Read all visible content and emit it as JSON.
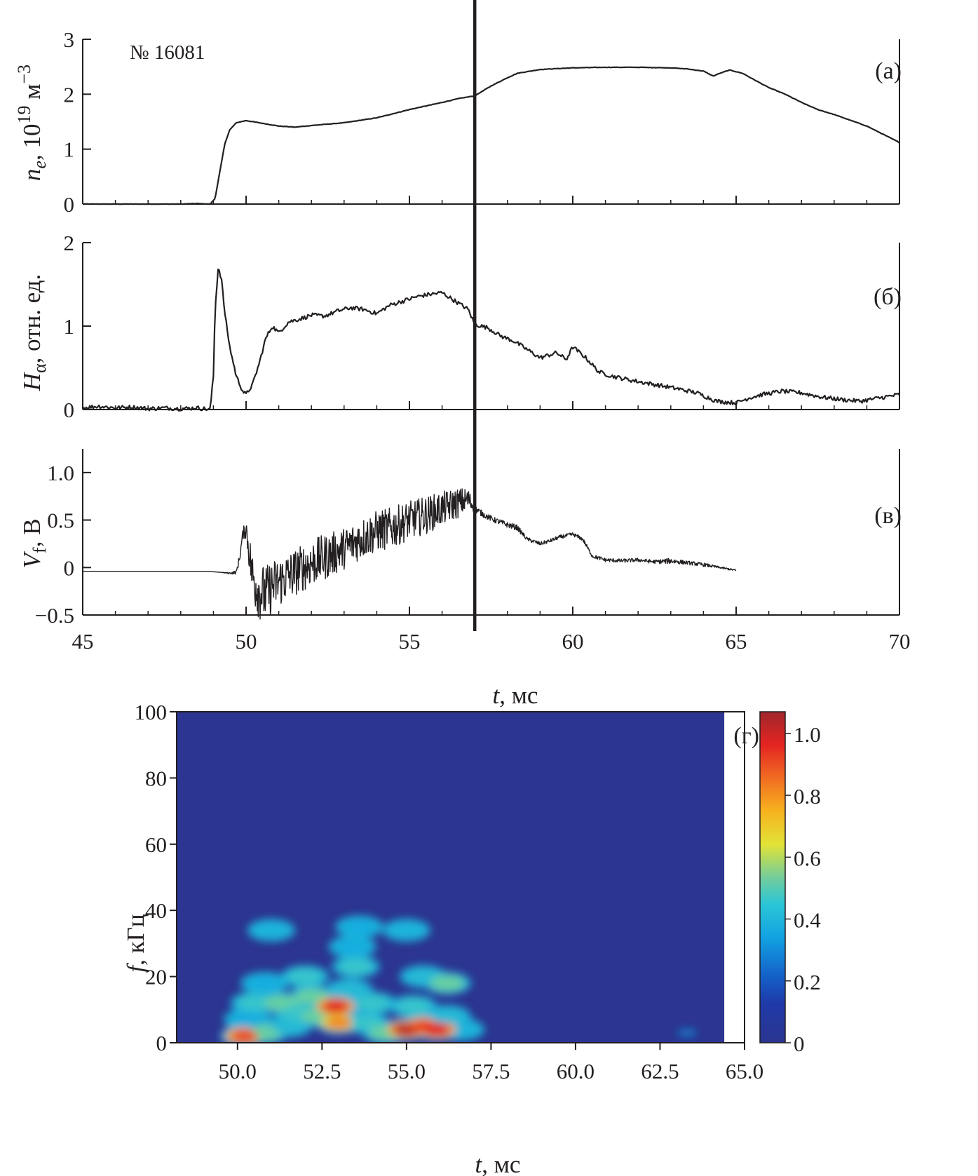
{
  "shot_label": "№ 16081",
  "time_label": {
    "italic": "t",
    "rest": ", мс"
  },
  "marker_time": 57,
  "colors": {
    "trace": "#231f20",
    "spectrogram_background": "#2c3591"
  },
  "chart_data": [
    {
      "type": "line",
      "panel_label": "(а)",
      "ylabel": {
        "main": "n",
        "sub": "e",
        "rest": ", 10",
        "sup": "19",
        "unit": " м",
        "unitsup": "−3"
      },
      "xlim": [
        45,
        70
      ],
      "ylim": [
        0,
        3
      ],
      "yticks": [
        "0",
        "1",
        "2",
        "3"
      ],
      "x": [
        45,
        46,
        47,
        48,
        48.5,
        48.9,
        49.05,
        49.2,
        49.35,
        49.5,
        49.7,
        50,
        50.5,
        51,
        51.5,
        52,
        53,
        54,
        55,
        56,
        56.5,
        57,
        57.5,
        58,
        58.3,
        59,
        60,
        61,
        62,
        63,
        63.5,
        64,
        64.3,
        64.5,
        64.8,
        65.2,
        65.5,
        66,
        66.5,
        67,
        67.5,
        68,
        69,
        70
      ],
      "y": [
        0,
        0,
        0,
        0,
        0.01,
        0,
        0.1,
        0.6,
        1.1,
        1.35,
        1.48,
        1.52,
        1.47,
        1.42,
        1.4,
        1.43,
        1.48,
        1.57,
        1.72,
        1.85,
        1.92,
        1.97,
        2.15,
        2.3,
        2.38,
        2.45,
        2.48,
        2.49,
        2.49,
        2.48,
        2.46,
        2.42,
        2.33,
        2.38,
        2.44,
        2.38,
        2.28,
        2.12,
        2.0,
        1.85,
        1.72,
        1.63,
        1.42,
        1.12
      ]
    },
    {
      "type": "line",
      "panel_label": "(б)",
      "ylabel": {
        "main": "H",
        "sub": "α",
        "rest": ", отн. ед."
      },
      "xlim": [
        45,
        70
      ],
      "ylim": [
        0,
        2
      ],
      "yticks": [
        "0",
        "1",
        "2"
      ],
      "x": [
        45,
        45.5,
        46,
        46.5,
        47,
        47.5,
        48,
        48.5,
        48.9,
        49.0,
        49.05,
        49.15,
        49.25,
        49.35,
        49.5,
        49.7,
        49.9,
        50.0,
        50.2,
        50.4,
        50.6,
        50.8,
        51,
        51.3,
        51.6,
        52,
        52.4,
        52.8,
        53.2,
        53.6,
        54,
        54.4,
        54.8,
        55.2,
        55.6,
        56,
        56.4,
        56.8,
        57,
        57.4,
        57.8,
        58.2,
        58.6,
        59,
        59.5,
        59.8,
        60,
        60.4,
        60.8,
        61.2,
        61.8,
        62.5,
        63.2,
        63.8,
        64.4,
        65,
        65.4,
        65.8,
        66.4,
        67,
        67.6,
        68.2,
        68.8,
        69.4,
        70
      ],
      "y": [
        0.02,
        0.04,
        0.02,
        0.03,
        0.01,
        0.02,
        0.01,
        0.02,
        0.0,
        0.4,
        1.2,
        1.72,
        1.55,
        1.15,
        0.75,
        0.4,
        0.22,
        0.18,
        0.3,
        0.55,
        0.85,
        1.0,
        0.92,
        1.05,
        1.08,
        1.13,
        1.12,
        1.18,
        1.22,
        1.2,
        1.15,
        1.25,
        1.3,
        1.35,
        1.38,
        1.4,
        1.3,
        1.2,
        1.02,
        0.98,
        0.88,
        0.82,
        0.72,
        0.62,
        0.68,
        0.6,
        0.75,
        0.62,
        0.45,
        0.4,
        0.35,
        0.3,
        0.25,
        0.2,
        0.1,
        0.08,
        0.14,
        0.18,
        0.22,
        0.2,
        0.15,
        0.12,
        0.1,
        0.14,
        0.18
      ]
    },
    {
      "type": "line",
      "panel_label": "(в)",
      "ylabel": {
        "main": "V",
        "sub": "f",
        "rest": ", В"
      },
      "xlim": [
        45,
        70
      ],
      "ylim": [
        -0.5,
        1.25
      ],
      "yticks": [
        "−0.5",
        "0",
        "0.5",
        "1.0"
      ],
      "x": [
        45,
        46,
        47,
        48,
        48.8,
        49.2,
        49.5,
        49.7,
        49.8,
        49.9,
        50.0,
        50.1,
        50.2,
        50.4,
        50.6,
        50.8,
        51,
        51.5,
        52,
        52.5,
        53,
        53.5,
        54,
        54.5,
        55,
        55.5,
        56,
        56.5,
        56.8,
        57,
        57.3,
        57.6,
        58,
        58.3,
        58.6,
        59,
        59.3,
        59.6,
        60,
        60.3,
        60.6,
        61,
        61.5,
        62,
        62.5,
        63,
        63.5,
        64,
        64.5,
        65
      ],
      "y": [
        -0.04,
        -0.04,
        -0.04,
        -0.04,
        -0.04,
        -0.05,
        -0.06,
        -0.05,
        0.1,
        0.35,
        0.42,
        0.15,
        -0.1,
        -0.25,
        -0.28,
        -0.2,
        -0.15,
        -0.05,
        0.05,
        0.12,
        0.2,
        0.3,
        0.38,
        0.42,
        0.5,
        0.55,
        0.62,
        0.68,
        0.72,
        0.62,
        0.55,
        0.5,
        0.45,
        0.42,
        0.3,
        0.25,
        0.28,
        0.32,
        0.35,
        0.3,
        0.12,
        0.08,
        0.07,
        0.08,
        0.06,
        0.07,
        0.05,
        0.03,
        0.0,
        -0.03
      ],
      "noise_amplitude": [
        0,
        0,
        0,
        0,
        0,
        0,
        0.01,
        0.02,
        0.05,
        0.05,
        0.12,
        0.2,
        0.28,
        0.3,
        0.3,
        0.28,
        0.27,
        0.25,
        0.25,
        0.24,
        0.22,
        0.22,
        0.22,
        0.22,
        0.2,
        0.2,
        0.18,
        0.16,
        0.12,
        0.04,
        0.03,
        0.03,
        0.03,
        0.03,
        0.02,
        0.02,
        0.02,
        0.02,
        0.02,
        0.02,
        0.02,
        0.02,
        0.02,
        0.02,
        0.02,
        0.03,
        0.02,
        0.02,
        0.01,
        0.01
      ]
    },
    {
      "type": "heatmap",
      "panel_label": "(г)",
      "ylabel": {
        "main": "f",
        "rest": ", кГц"
      },
      "xlim": [
        48.2,
        65.0
      ],
      "data_xmax": 64.4,
      "ylim": [
        0,
        100
      ],
      "xticks": [
        "50.0",
        "52.5",
        "55.0",
        "57.5",
        "60.0",
        "62.5",
        "65.0"
      ],
      "yticks": [
        "0",
        "20",
        "40",
        "60",
        "80",
        "100"
      ],
      "colorbar": {
        "min": 0,
        "max": 1.07,
        "ticks": [
          "0",
          "0.2",
          "0.4",
          "0.6",
          "0.8",
          "1.0"
        ]
      },
      "blobs": [
        {
          "t": 50.2,
          "f": 2,
          "a": 0.85
        },
        {
          "t": 50.8,
          "f": 3,
          "a": 0.6
        },
        {
          "t": 50.3,
          "f": 7,
          "a": 0.45
        },
        {
          "t": 50.5,
          "f": 12,
          "a": 0.55
        },
        {
          "t": 50.8,
          "f": 18,
          "a": 0.45
        },
        {
          "t": 51.3,
          "f": 12,
          "a": 0.6
        },
        {
          "t": 51.5,
          "f": 5,
          "a": 0.5
        },
        {
          "t": 51.8,
          "f": 9,
          "a": 0.55
        },
        {
          "t": 51.0,
          "f": 34,
          "a": 0.4
        },
        {
          "t": 52.2,
          "f": 14,
          "a": 0.6
        },
        {
          "t": 52.0,
          "f": 20,
          "a": 0.55
        },
        {
          "t": 52.4,
          "f": 8,
          "a": 0.6
        },
        {
          "t": 52.9,
          "f": 11,
          "a": 0.9
        },
        {
          "t": 53.0,
          "f": 6,
          "a": 0.75
        },
        {
          "t": 53.3,
          "f": 16,
          "a": 0.5
        },
        {
          "t": 53.5,
          "f": 23,
          "a": 0.55
        },
        {
          "t": 53.4,
          "f": 29,
          "a": 0.45
        },
        {
          "t": 53.6,
          "f": 35,
          "a": 0.45
        },
        {
          "t": 54.0,
          "f": 12,
          "a": 0.55
        },
        {
          "t": 53.8,
          "f": 6,
          "a": 0.55
        },
        {
          "t": 54.4,
          "f": 3,
          "a": 0.6
        },
        {
          "t": 55.0,
          "f": 4,
          "a": 0.95
        },
        {
          "t": 55.5,
          "f": 5,
          "a": 0.85
        },
        {
          "t": 55.9,
          "f": 4,
          "a": 0.9
        },
        {
          "t": 55.2,
          "f": 11,
          "a": 0.55
        },
        {
          "t": 55.5,
          "f": 20,
          "a": 0.5
        },
        {
          "t": 55.0,
          "f": 34,
          "a": 0.4
        },
        {
          "t": 56.2,
          "f": 8,
          "a": 0.5
        },
        {
          "t": 56.2,
          "f": 18,
          "a": 0.6
        },
        {
          "t": 56.6,
          "f": 4,
          "a": 0.35
        },
        {
          "t": 63.3,
          "f": 3,
          "a": 0.12
        }
      ]
    }
  ]
}
